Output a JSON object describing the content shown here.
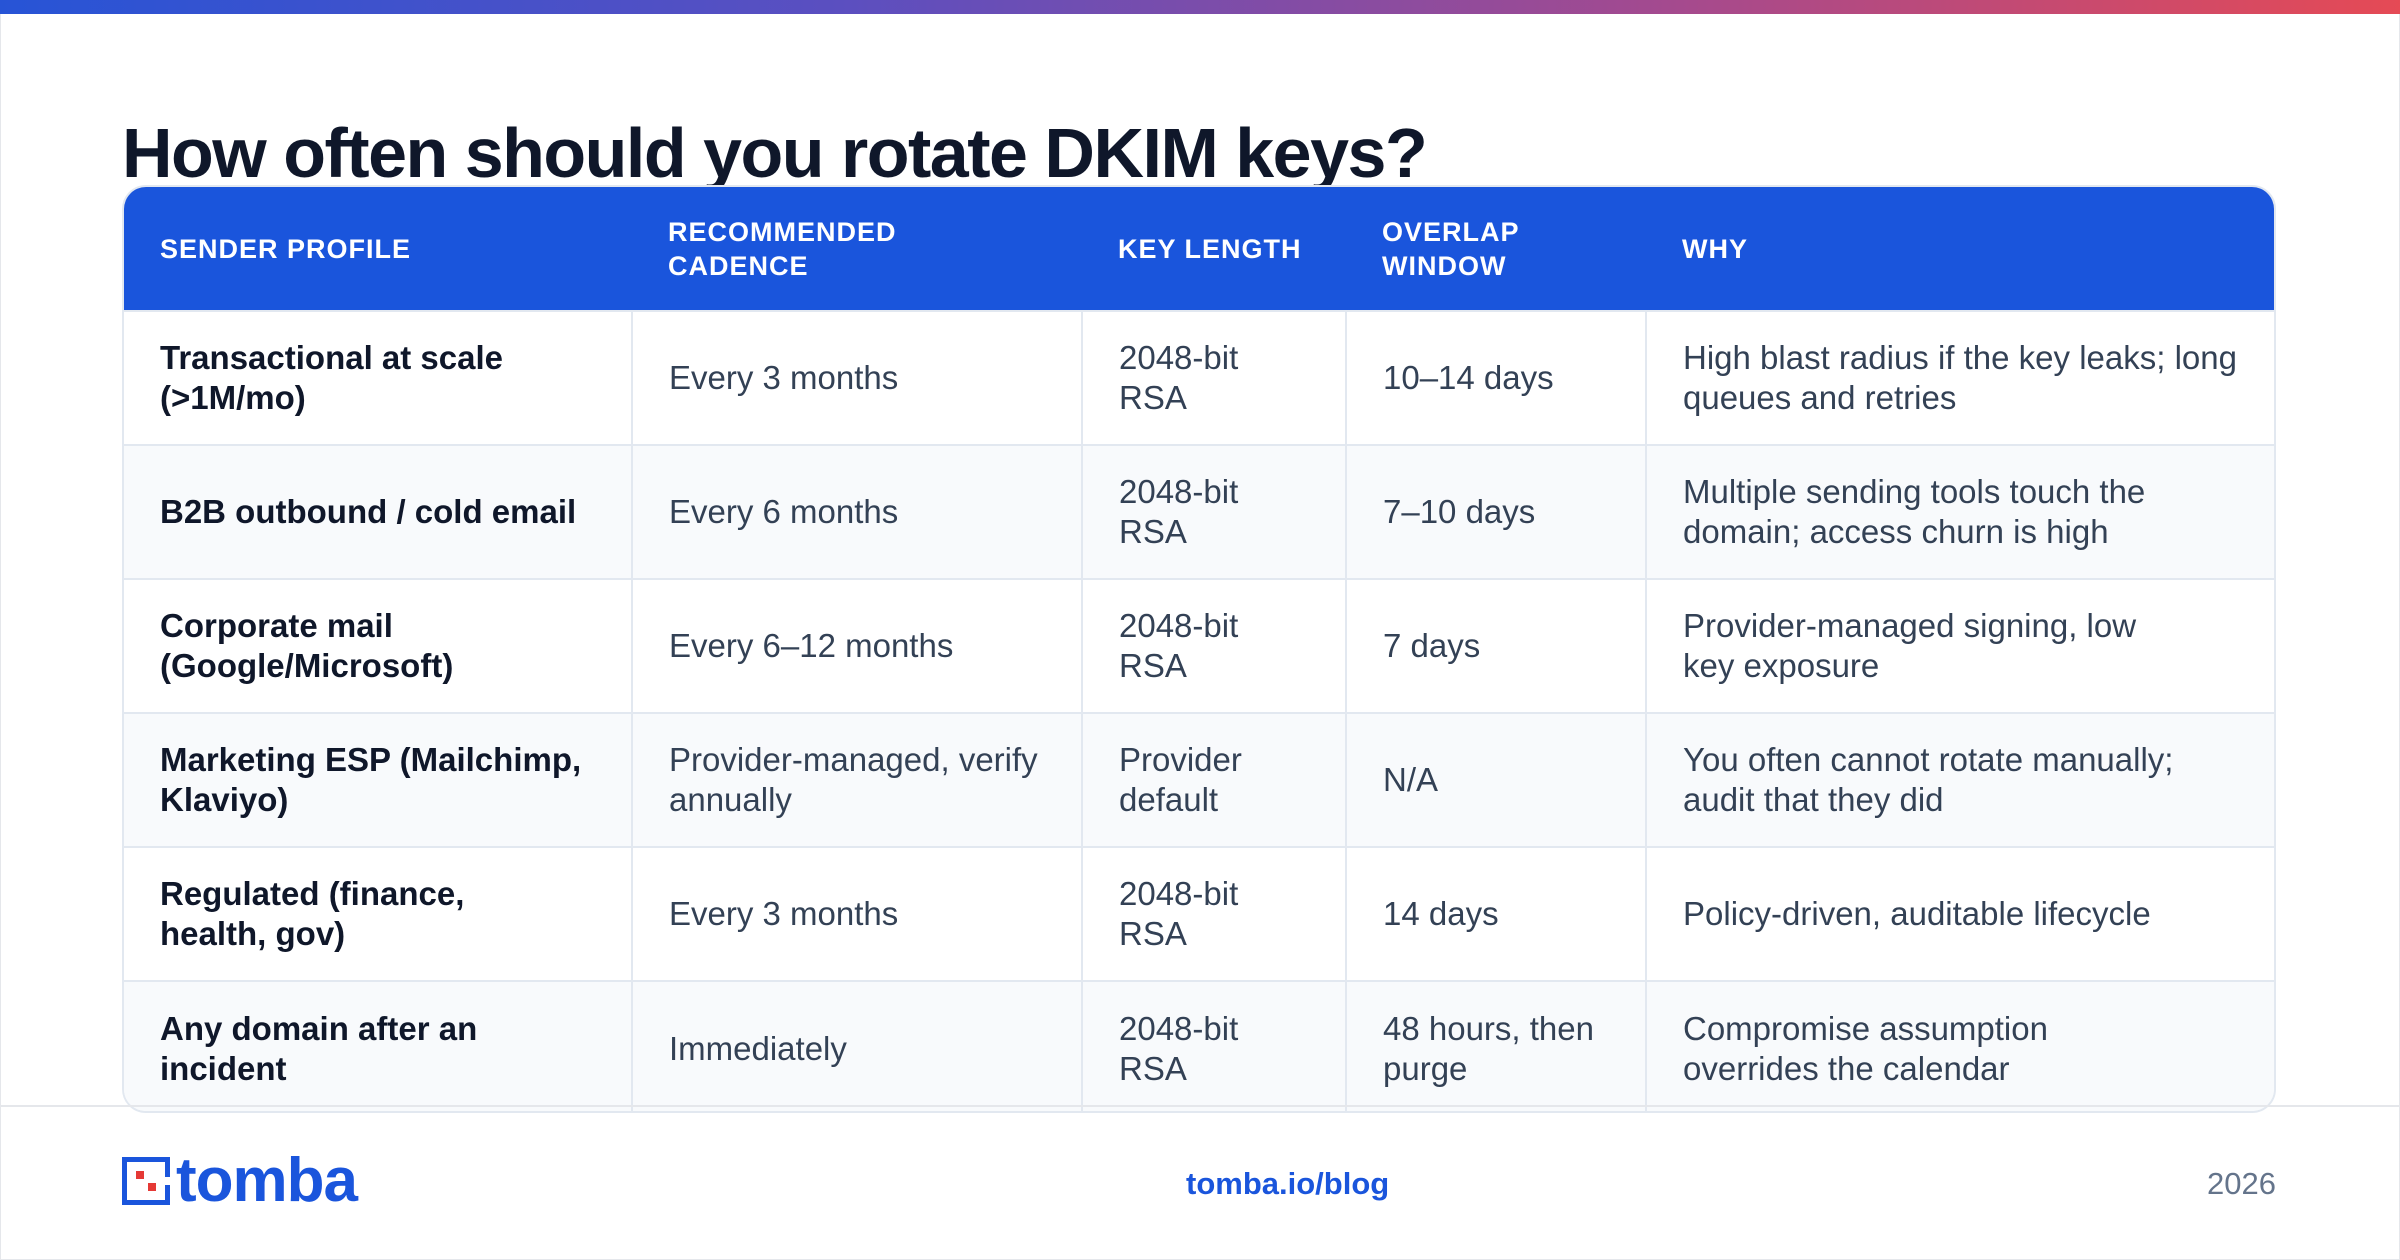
{
  "colors": {
    "accent": "#1a55dc",
    "title": "#0f172a",
    "gradient_start": "#2754d6",
    "gradient_end": "#e54a55",
    "logo_red": "#e53935"
  },
  "title": "How often should you rotate DKIM keys?",
  "table": {
    "headers": [
      "SENDER PROFILE",
      "RECOMMENDED CADENCE",
      "KEY LENGTH",
      "OVERLAP WINDOW",
      "WHY"
    ],
    "rows": [
      {
        "profile": "Transactional at scale (>1M/mo)",
        "cadence": "Every 3 months",
        "key_length": "2048-bit RSA",
        "overlap": "10–14 days",
        "why": "High blast radius if the key leaks; long queues and retries"
      },
      {
        "profile": "B2B outbound / cold email",
        "cadence": "Every 6 months",
        "key_length": "2048-bit RSA",
        "overlap": "7–10 days",
        "why": "Multiple sending tools touch the domain; access churn is high"
      },
      {
        "profile": "Corporate mail (Google/Microsoft)",
        "cadence": "Every 6–12 months",
        "key_length": "2048-bit RSA",
        "overlap": "7 days",
        "why": "Provider-managed signing, low key exposure"
      },
      {
        "profile": "Marketing ESP (Mailchimp, Klaviyo)",
        "cadence": "Provider-managed, verify annually",
        "key_length": "Provider default",
        "overlap": "N/A",
        "why": "You often cannot rotate manually; audit that they did"
      },
      {
        "profile": "Regulated (finance, health, gov)",
        "cadence": "Every 3 months",
        "key_length": "2048-bit RSA",
        "overlap": "14 days",
        "why": "Policy-driven, auditable lifecycle"
      },
      {
        "profile": "Any domain after an incident",
        "cadence": "Immediately",
        "key_length": "2048-bit RSA",
        "overlap": "48 hours, then purge",
        "why": "Compromise assumption overrides the calendar"
      }
    ]
  },
  "footer": {
    "logo_text": "tomba",
    "logo_icon": "tomba-logo-icon",
    "link": "tomba.io/blog",
    "year": "2026"
  }
}
